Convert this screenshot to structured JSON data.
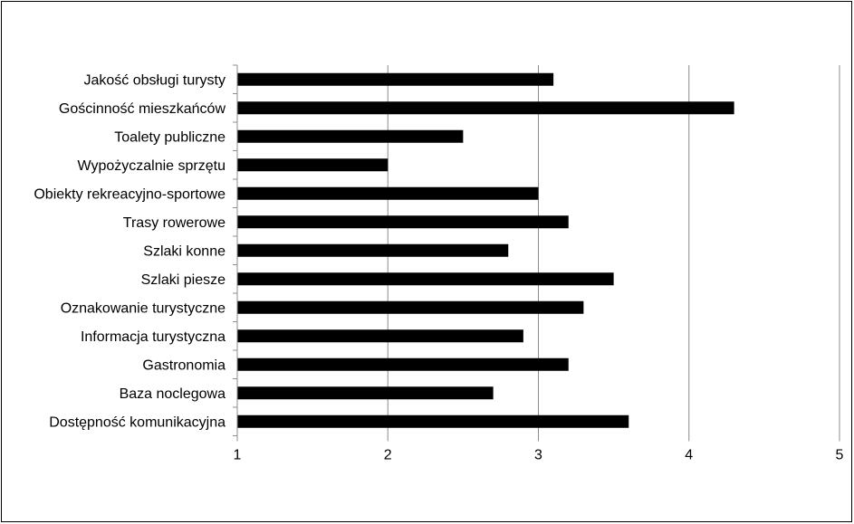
{
  "chart_data": {
    "type": "bar",
    "orientation": "horizontal",
    "categories": [
      "Jakość obsługi turysty",
      "Gościnność mieszkańców",
      "Toalety publiczne",
      "Wypożyczalnie sprzętu",
      "Obiekty rekreacyjno-sportowe",
      "Trasy rowerowe",
      "Szlaki konne",
      "Szlaki piesze",
      "Oznakowanie turystyczne",
      "Informacja turystyczna",
      "Gastronomia",
      "Baza noclegowa",
      "Dostępność komunikacyjna"
    ],
    "values": [
      3.1,
      4.3,
      2.5,
      2.0,
      3.0,
      3.2,
      2.8,
      3.5,
      3.3,
      2.9,
      3.2,
      2.7,
      3.6
    ],
    "xlim": [
      1,
      5
    ],
    "xticks": [
      "1",
      "2",
      "3",
      "4",
      "5"
    ],
    "grid": "vertical",
    "legend": "none",
    "bar_color": "#000000",
    "grid_color": "#8c8c8c"
  }
}
